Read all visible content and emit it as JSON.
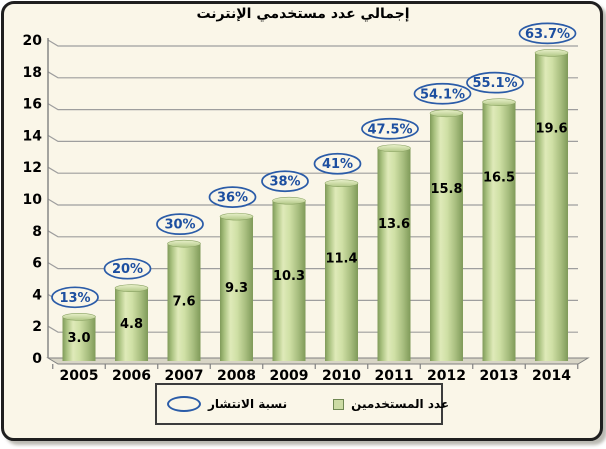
{
  "frame": {
    "title": "إجمالي عدد مستخدمي الإنترنت"
  },
  "chart_data": {
    "type": "bar",
    "title": "إجمالي عدد مستخدمي الإنترنت",
    "categories": [
      "2005",
      "2006",
      "2007",
      "2008",
      "2009",
      "2010",
      "2011",
      "2012",
      "2013",
      "2014"
    ],
    "series": [
      {
        "name": "عدد المستخدمين",
        "type": "cylinder-bar",
        "values": [
          3.0,
          4.8,
          7.6,
          9.3,
          10.3,
          11.4,
          13.6,
          15.8,
          16.5,
          19.6
        ],
        "value_labels": [
          "3.0",
          "4.8",
          "7.6",
          "9.3",
          "10.3",
          "11.4",
          "13.6",
          "15.8",
          "16.5",
          "19.6"
        ],
        "color": "#c3d69b"
      },
      {
        "name": "نسبة الانتشار",
        "type": "oval-callout",
        "labels": [
          "13%",
          "20%",
          "30%",
          "36%",
          "38%",
          "41%",
          "47.5%",
          "54.1%",
          "55.1%",
          "63.7%"
        ],
        "color": "#2b5ca8"
      }
    ],
    "ylim": [
      0,
      20
    ],
    "yticks": [
      0,
      2,
      4,
      6,
      8,
      10,
      12,
      14,
      16,
      18,
      20
    ],
    "grid": true,
    "legend_position": "bottom-center"
  },
  "legend": {
    "items": [
      {
        "icon": "oval-outline",
        "label": "نسبة الانتشار"
      },
      {
        "icon": "green-square",
        "label": "عدد المستخدمين"
      }
    ]
  },
  "colors": {
    "background": "#faf6e8",
    "frame_border": "#1f1f1f",
    "gridline": "#9e9e9e",
    "axis": "#808080",
    "bar_light": "#dfeab9",
    "bar_dark": "#7f9a59",
    "callout_blue": "#2b5ca8",
    "label_text": "#000000",
    "floor": "#d8d5c6"
  }
}
